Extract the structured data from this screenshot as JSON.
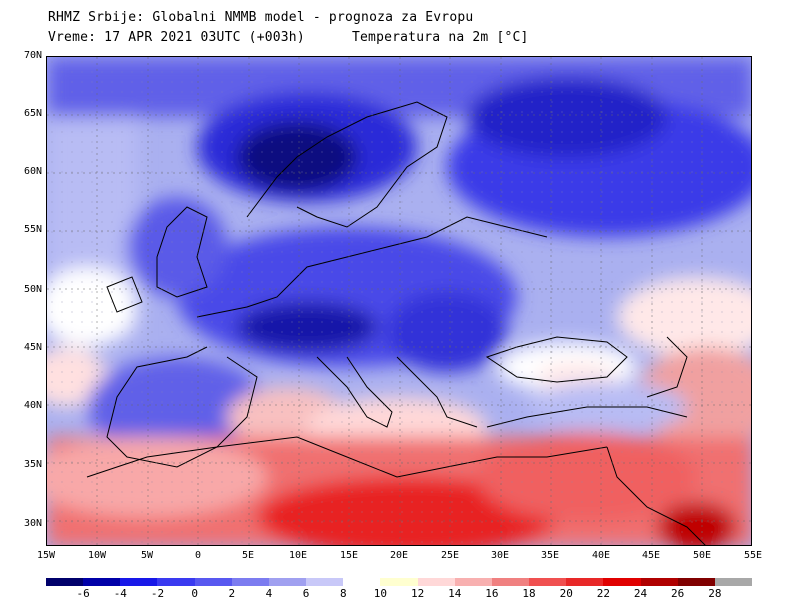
{
  "header": {
    "line1": "RHMZ Srbije: Globalni NMMB model - prognoza za Evropu",
    "line2": "Vreme: 17 APR 2021 03UTC (+003h)",
    "line3": "Temperatura na 2m [°C]"
  },
  "map": {
    "lat_labels": [
      "70N",
      "65N",
      "60N",
      "55N",
      "50N",
      "45N",
      "40N",
      "35N",
      "30N"
    ],
    "lon_labels": [
      "15W",
      "10W",
      "5W",
      "0",
      "5E",
      "10E",
      "15E",
      "20E",
      "25E",
      "30E",
      "35E",
      "40E",
      "45E",
      "50E",
      "55E"
    ]
  },
  "colorbar": {
    "colors": [
      "#00006b",
      "#0000a8",
      "#1818e8",
      "#3a3af0",
      "#5858f0",
      "#7c7cf0",
      "#a0a0f0",
      "#c8c8f8",
      "#ffffff",
      "#ffffd0",
      "#ffd8d8",
      "#f8b0b0",
      "#f08080",
      "#f05050",
      "#e82828",
      "#e00000",
      "#b00000",
      "#800000",
      "#a8a8a8"
    ],
    "labels": [
      "-6",
      "-4",
      "-2",
      "0",
      "2",
      "4",
      "6",
      "8",
      "10",
      "12",
      "14",
      "16",
      "18",
      "20",
      "22",
      "24",
      "26",
      "28"
    ]
  }
}
